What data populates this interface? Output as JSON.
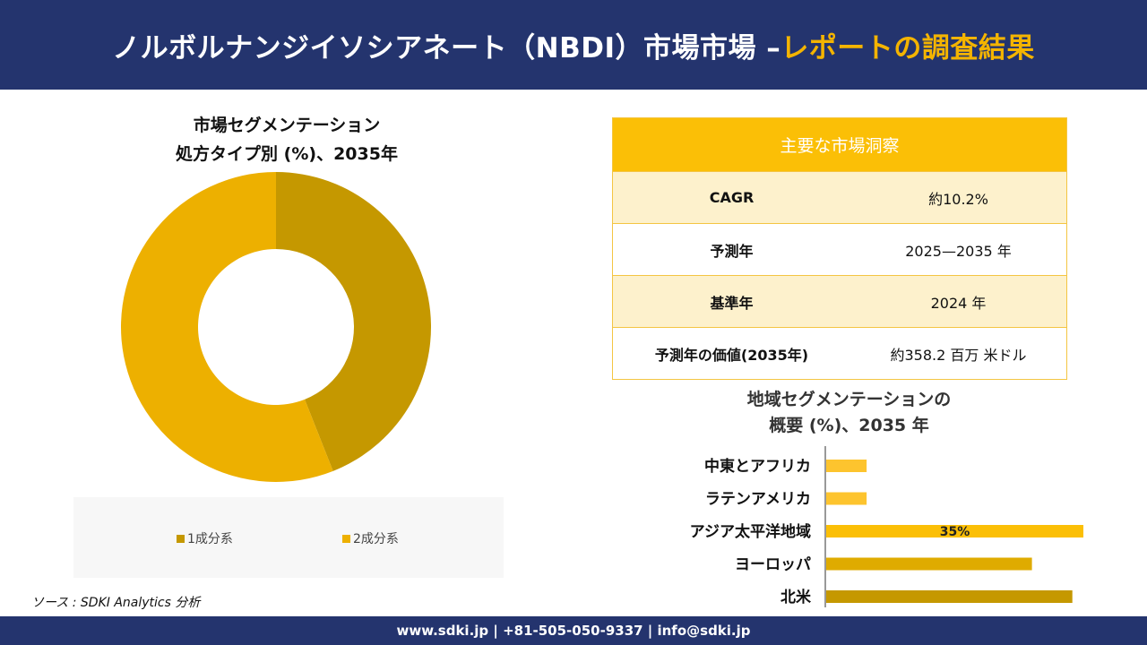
{
  "header": {
    "title_main": "ノルボルナンジイソシアネート（NBDI）市場市場 –",
    "title_accent": "レポートの調査結果"
  },
  "colors": {
    "navy": "#24346e",
    "yellow": "#fbbf06",
    "dark_gold": "#c59800",
    "gold": "#edb000",
    "light_yellow": "#fdf1cc"
  },
  "chart_data": [
    {
      "type": "pie",
      "title_line1": "市場セグメンテーション",
      "title_line2": "処方タイプ別 (%)、2035年",
      "categories": [
        "1成分系",
        "2成分系"
      ],
      "values": [
        44,
        56
      ],
      "colors": [
        "#c59800",
        "#edb000"
      ],
      "legend_position": "bottom"
    },
    {
      "type": "bar",
      "orientation": "horizontal",
      "title_line1": "地域セグメンテーションの",
      "title_line2": "概要 (%)、2035 年",
      "categories": [
        "中東とアフリカ",
        "ラテンアメリカ",
        "アジア太平洋地域",
        "ヨーロッパ",
        "北米"
      ],
      "values": [
        5.5,
        5.5,
        35,
        28,
        33.5
      ],
      "colors": [
        "#fdc42e",
        "#fdc42e",
        "#fbbf06",
        "#dfab00",
        "#c59800"
      ],
      "data_labels": [
        "",
        "",
        "35%",
        "",
        ""
      ],
      "xlim": [
        0,
        40
      ]
    }
  ],
  "insights": {
    "header": "主要な市場洞察",
    "rows": [
      {
        "label": "CAGR",
        "value": "約10.2%"
      },
      {
        "label": "予測年",
        "value": "2025—2035 年"
      },
      {
        "label": "基準年",
        "value": "2024 年"
      },
      {
        "label": "予測年の価値(2035年)",
        "value": "約358.2 百万 米ドル"
      }
    ]
  },
  "source": "ソース : SDKI Analytics 分析",
  "footer": "www.sdki.jp | +81-505-050-9337 | info@sdki.jp"
}
